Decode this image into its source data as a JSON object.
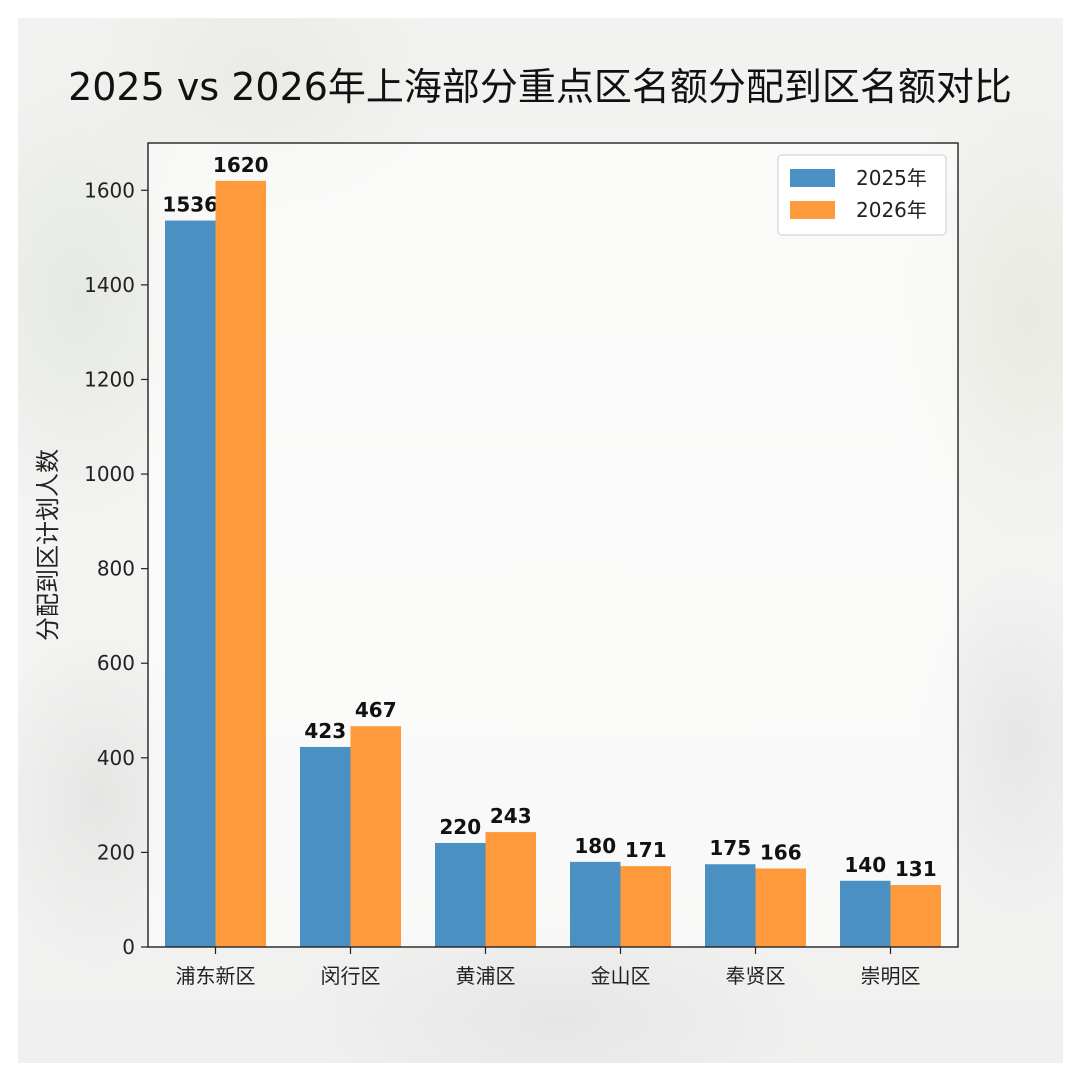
{
  "chart_data": {
    "type": "bar",
    "title": "2025 vs 2026年上海部分重点区名额分配到区名额对比",
    "xlabel": "",
    "ylabel": "分配到区计划人数",
    "categories": [
      "浦东新区",
      "闵行区",
      "黄浦区",
      "金山区",
      "奉贤区",
      "崇明区"
    ],
    "series": [
      {
        "name": "2025年",
        "values": [
          1536,
          423,
          220,
          180,
          175,
          140
        ],
        "color": "#4a90c2"
      },
      {
        "name": "2026年",
        "values": [
          1620,
          467,
          243,
          171,
          166,
          131
        ],
        "color": "#fe9a3c"
      }
    ],
    "ylim": [
      0,
      1700
    ],
    "yticks": [
      0,
      200,
      400,
      600,
      800,
      1000,
      1200,
      1400,
      1600
    ],
    "grid": false,
    "legend": "top-right",
    "data_labels": true
  }
}
